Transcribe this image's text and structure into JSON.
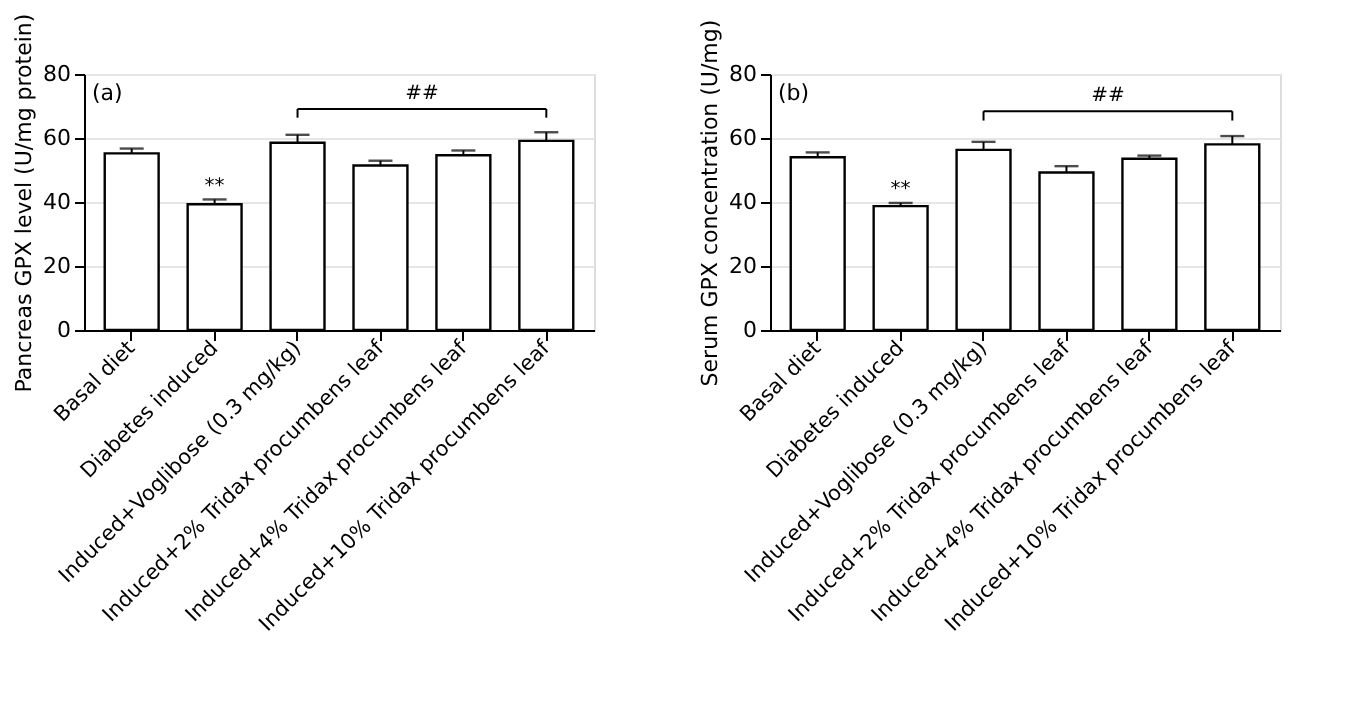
{
  "chart_data": [
    {
      "type": "bar",
      "ylabel": "Pancreas GPX level (U/mg protein)",
      "categories": [
        "Basal diet",
        "Diabetes induced",
        "Induced+Voglibose (0.3 mg/kg)",
        "Induced+2% Tridax procumbens leaf",
        "Induced+4% Tridax procumbens leaf",
        "Induced+10% Tridax procumbens leaf"
      ],
      "values": [
        55.2,
        39.3,
        58.5,
        51.4,
        54.6,
        59.1
      ],
      "errors": [
        1.5,
        1.5,
        2.5,
        1.5,
        1.5,
        2.7
      ],
      "color": "#ffffff",
      "ylim": [
        0,
        80
      ],
      "yticks": [
        0,
        20,
        40,
        60,
        80
      ],
      "grid": "y",
      "annotations": [
        "(a)",
        "##",
        {
          "text": "**",
          "x": "Diabetes induced",
          "y": 42
        }
      ]
    },
    {
      "type": "bar",
      "ylabel": "Serum GPX concentration (U/mg)",
      "categories": [
        "Basal diet",
        "Diabetes induced",
        "Induced+Voglibose (0.3 mg/kg)",
        "Induced+2% Tridax procumbens leaf",
        "Induced+4% Tridax procumbens leaf",
        "Induced+10% Tridax procumbens leaf"
      ],
      "values": [
        54.0,
        38.7,
        56.3,
        49.2,
        53.5,
        58.0
      ],
      "errors": [
        1.5,
        1.0,
        2.5,
        2.0,
        1.0,
        2.6
      ],
      "color": "#ffffff",
      "ylim": [
        0,
        80
      ],
      "yticks": [
        0,
        20,
        40,
        60,
        80
      ],
      "grid": "y",
      "annotations": [
        "(b)",
        "##",
        {
          "text": "**",
          "x": "Diabetes induced",
          "y": 41
        }
      ]
    }
  ]
}
